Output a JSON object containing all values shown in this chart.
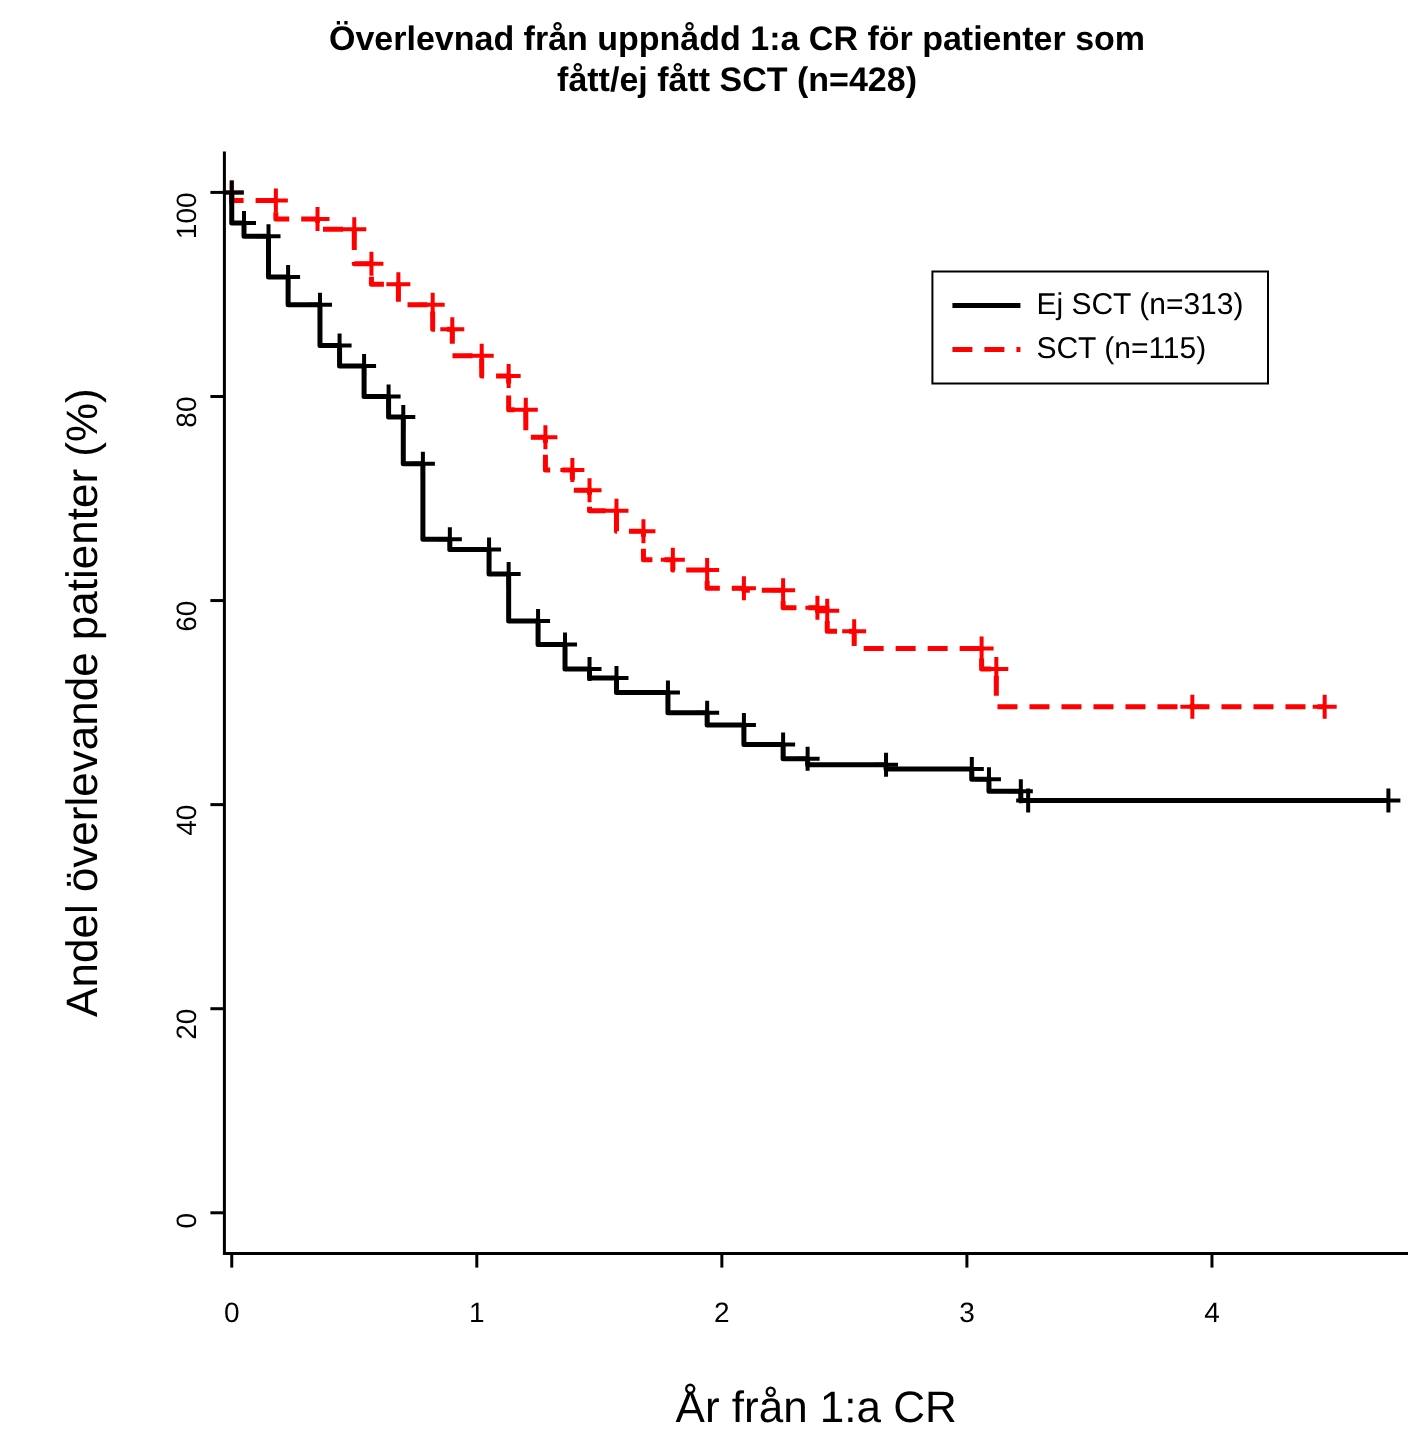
{
  "chart_data": {
    "type": "step",
    "title": "Överlevnad från uppnådd 1:a CR för patienter som fått/ej fått SCT (n=428)",
    "xlabel": "År från 1:a CR",
    "ylabel": "Andel överlevande patienter (%)",
    "xlim": [
      -0.03,
      4.8
    ],
    "xticks": [
      0,
      1,
      2,
      3,
      4
    ],
    "ylim": [
      -4,
      104
    ],
    "yticks": [
      0,
      20,
      40,
      60,
      80,
      100
    ],
    "grid": false,
    "legend": "top right",
    "marker": "cross",
    "series": [
      {
        "name": "Ej SCT (n=313)",
        "color": "#000000",
        "line_style": "solid",
        "x": [
          0,
          0.05,
          0.15,
          0.23,
          0.36,
          0.44,
          0.54,
          0.64,
          0.7,
          0.78,
          0.89,
          1.05,
          1.13,
          1.25,
          1.36,
          1.46,
          1.57,
          1.78,
          1.94,
          2.09,
          2.25,
          2.35,
          2.67,
          3.02,
          3.09,
          3.22,
          3.25,
          4.72
        ],
        "values": [
          100,
          97,
          95.7,
          91.7,
          89,
          85,
          83,
          80,
          78,
          73.4,
          66,
          65,
          62.6,
          58,
          55.7,
          53.3,
          52.4,
          51,
          49,
          47.8,
          45.9,
          44.5,
          43.9,
          43.5,
          42.5,
          41.3,
          40.4,
          40.4
        ]
      },
      {
        "name": "SCT (n=115)",
        "color": "#ff0000",
        "line_style": "dashed",
        "x": [
          0,
          0.18,
          0.35,
          0.5,
          0.57,
          0.68,
          0.82,
          0.9,
          1.02,
          1.13,
          1.2,
          1.28,
          1.39,
          1.46,
          1.57,
          1.68,
          1.8,
          1.94,
          2.09,
          2.25,
          2.39,
          2.43,
          2.54,
          3.06,
          3.12,
          3.92,
          4.46
        ],
        "values": [
          100,
          99.2,
          97.4,
          96.4,
          93,
          91,
          89,
          86.6,
          84,
          82,
          78.7,
          76,
          72.8,
          70.8,
          68.8,
          66.8,
          64,
          63,
          61.2,
          61,
          59.3,
          59,
          57,
          55.3,
          53.3,
          49.6,
          49.6
        ]
      }
    ]
  }
}
